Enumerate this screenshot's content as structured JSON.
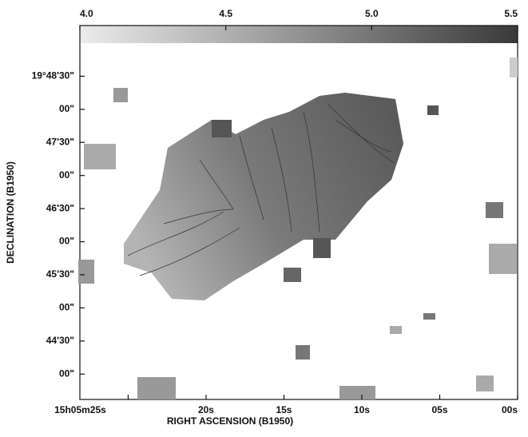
{
  "chart_data": {
    "type": "image",
    "x_label": "RIGHT ASCENSION (B1950)",
    "y_label": "DECLINATION (B1950)",
    "xlim": [
      28.1,
      0
    ],
    "xticks": [
      {
        "value": 25,
        "label": "15h05m25s"
      },
      {
        "value": 20,
        "label": "20s"
      },
      {
        "value": 15,
        "label": "15s"
      },
      {
        "value": 10,
        "label": "10s"
      },
      {
        "value": 5,
        "label": "05s"
      },
      {
        "value": 0,
        "label": "00s"
      }
    ],
    "ylim": [
      2617,
      2940
    ],
    "yticks": [
      {
        "value": 2910,
        "label": "19°48'30\""
      },
      {
        "value": 2880,
        "label": "00\""
      },
      {
        "value": 2850,
        "label": "47'30\""
      },
      {
        "value": 2820,
        "label": "00\""
      },
      {
        "value": 2790,
        "label": "46'30\""
      },
      {
        "value": 2760,
        "label": "00\""
      },
      {
        "value": 2730,
        "label": "45'30\""
      },
      {
        "value": 2700,
        "label": "00\""
      },
      {
        "value": 2670,
        "label": "44'30\""
      },
      {
        "value": 2640,
        "label": "00\""
      }
    ],
    "colorbar": {
      "lim": [
        4.0,
        5.5
      ],
      "ticks": [
        {
          "value": 4.0,
          "label": "4.0"
        },
        4.5,
        {
          "value": 5.0,
          "label": "5.0"
        },
        5.5
      ],
      "colors": [
        "#ececec",
        "#3a3a3a"
      ]
    }
  }
}
